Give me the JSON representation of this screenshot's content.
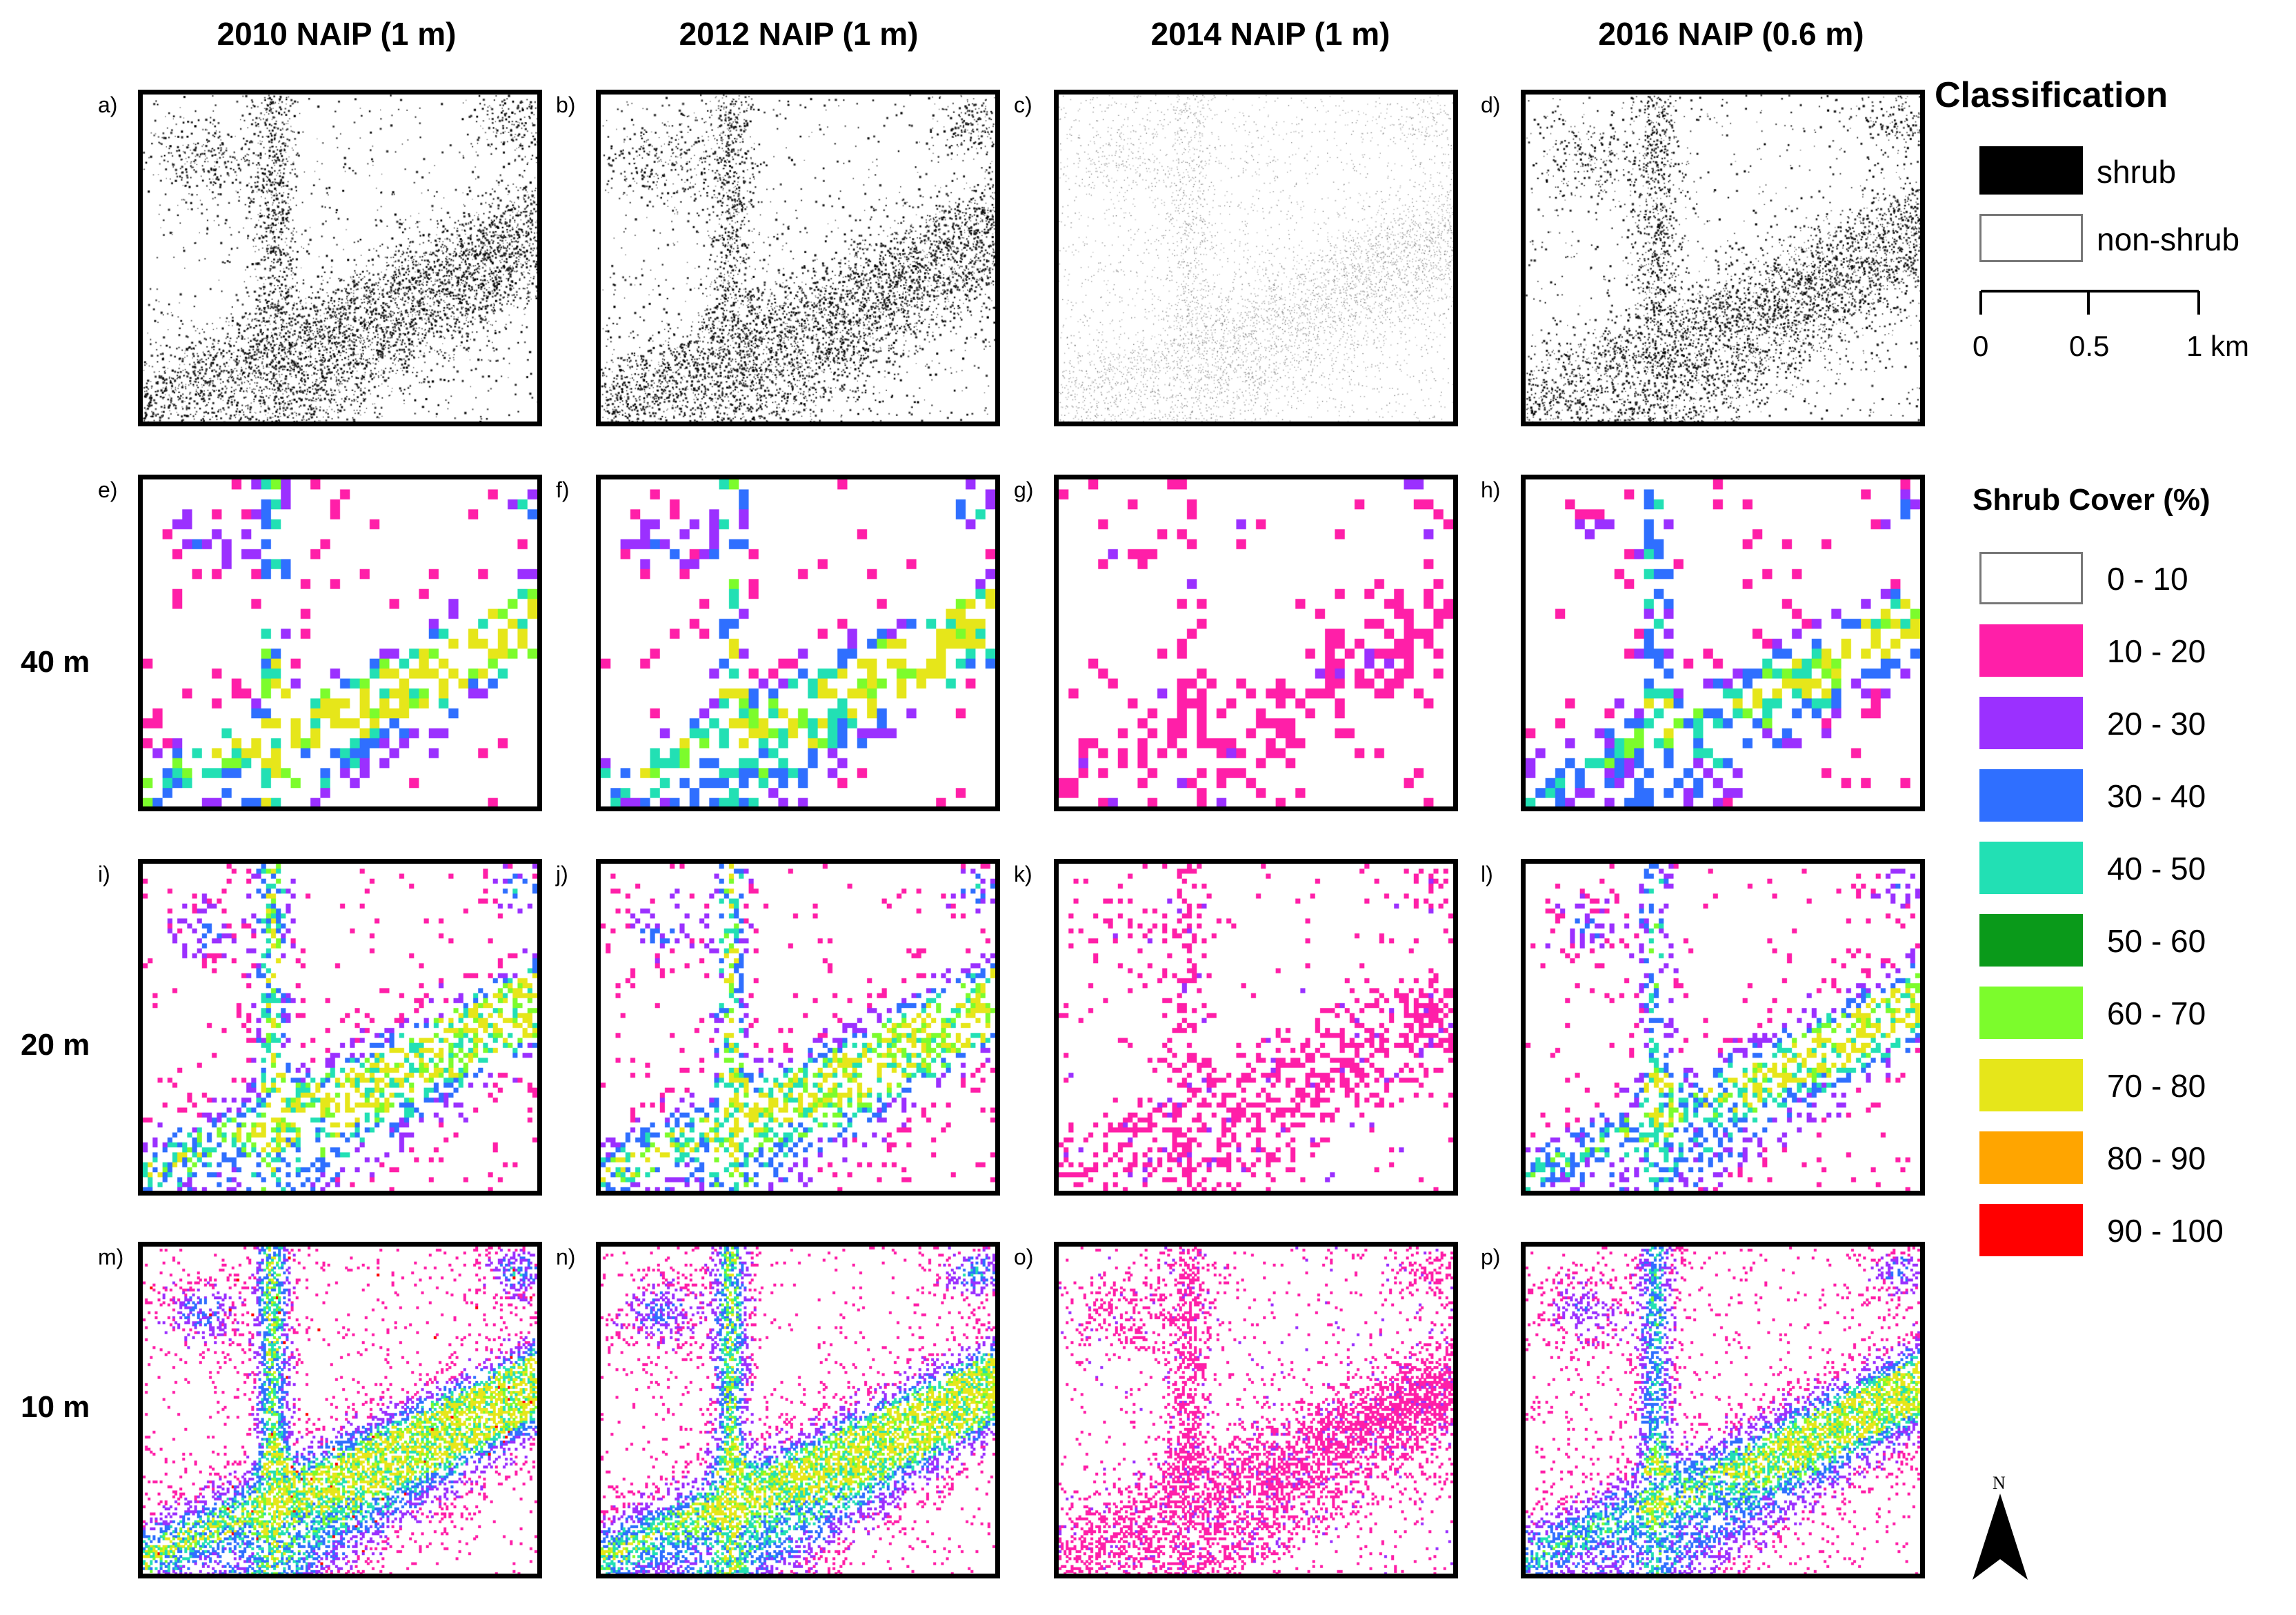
{
  "columns": [
    {
      "title": "2010 NAIP (1 m)"
    },
    {
      "title": "2012 NAIP (1 m)"
    },
    {
      "title": "2014 NAIP (1 m)"
    },
    {
      "title": "2016 NAIP (0.6 m)"
    }
  ],
  "rows": [
    {
      "label": ""
    },
    {
      "label": "40 m"
    },
    {
      "label": "20 m"
    },
    {
      "label": "10 m"
    }
  ],
  "panels": [
    {
      "letter": "a)",
      "kind": "classification"
    },
    {
      "letter": "b)",
      "kind": "classification"
    },
    {
      "letter": "c)",
      "kind": "classification"
    },
    {
      "letter": "d)",
      "kind": "classification"
    },
    {
      "letter": "e)",
      "kind": "cover"
    },
    {
      "letter": "f)",
      "kind": "cover"
    },
    {
      "letter": "g)",
      "kind": "cover"
    },
    {
      "letter": "h)",
      "kind": "cover"
    },
    {
      "letter": "i)",
      "kind": "cover"
    },
    {
      "letter": "j)",
      "kind": "cover"
    },
    {
      "letter": "k)",
      "kind": "cover"
    },
    {
      "letter": "l)",
      "kind": "cover"
    },
    {
      "letter": "m)",
      "kind": "cover"
    },
    {
      "letter": "n)",
      "kind": "cover"
    },
    {
      "letter": "o)",
      "kind": "cover"
    },
    {
      "letter": "p)",
      "kind": "cover"
    }
  ],
  "legend": {
    "classification_title": "Classification",
    "classes": [
      {
        "label": "shrub",
        "color": "#000000"
      },
      {
        "label": "non-shrub",
        "color": "#ffffff"
      }
    ],
    "scale": {
      "labels": [
        "0",
        "0.5",
        "1 km"
      ]
    },
    "cover_title": "Shrub Cover (%)",
    "cover_bins": [
      {
        "label": "0 - 10",
        "color": "#ffffff"
      },
      {
        "label": "10 - 20",
        "color": "#ff1fa8"
      },
      {
        "label": "20 - 30",
        "color": "#9b30ff"
      },
      {
        "label": "30 - 40",
        "color": "#2f6fff"
      },
      {
        "label": "40 - 50",
        "color": "#22e0b4"
      },
      {
        "label": "50 - 60",
        "color": "#0a9a1a"
      },
      {
        "label": "60 - 70",
        "color": "#7cfc2c"
      },
      {
        "label": "70 - 80",
        "color": "#e6e61a"
      },
      {
        "label": "80 - 90",
        "color": "#ffa500"
      },
      {
        "label": "90 - 100",
        "color": "#ff0000"
      }
    ],
    "north_label": "N"
  }
}
